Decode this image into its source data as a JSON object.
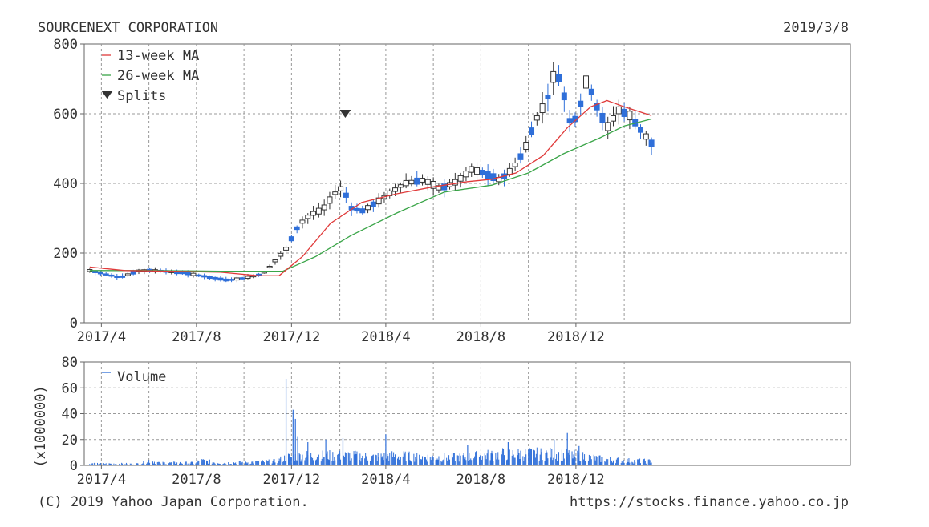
{
  "header": {
    "company": "SOURCENEXT CORPORATION",
    "date": "2019/3/8"
  },
  "footer": {
    "copyright": "(C) 2019 Yahoo Japan Corporation.",
    "url": "https://stocks.finance.yahoo.co.jp"
  },
  "colors": {
    "up_candle_fill": "#ffffff",
    "up_candle_stroke": "#333333",
    "down_candle_fill": "#2f6fd9",
    "ma13": "#e03a3a",
    "ma26": "#3aa548",
    "split_marker": "#333333",
    "volume": "#2f6fd9",
    "grid": "#999999"
  },
  "chart_data": [
    {
      "type": "candlestick",
      "title": "",
      "xlabel": "",
      "ylabel": "",
      "ylim": [
        0,
        800
      ],
      "yticks": [
        0,
        200,
        400,
        600,
        800
      ],
      "xtick_labels": [
        "2017/4",
        "2017/8",
        "2017/12",
        "2018/4",
        "2018/8",
        "2018/12"
      ],
      "grid": true,
      "legend_position": "top-left",
      "legend": [
        {
          "label": "13-week MA",
          "icon": "line",
          "color": "#e03a3a"
        },
        {
          "label": "26-week MA",
          "icon": "line",
          "color": "#3aa548"
        },
        {
          "label": "Splits",
          "icon": "down-triangle",
          "color": "#333333"
        }
      ],
      "split_marker_value": 600,
      "price_path": [
        [
          "2017-03-17",
          150
        ],
        [
          "2017-04-05",
          140
        ],
        [
          "2017-04-25",
          130
        ],
        [
          "2017-05-20",
          150
        ],
        [
          "2017-06-10",
          150
        ],
        [
          "2017-07-05",
          145
        ],
        [
          "2017-07-25",
          140
        ],
        [
          "2017-08-20",
          130
        ],
        [
          "2017-09-10",
          122
        ],
        [
          "2017-10-05",
          130
        ],
        [
          "2017-10-25",
          140
        ],
        [
          "2017-11-05",
          165
        ],
        [
          "2017-11-25",
          215
        ],
        [
          "2017-12-10",
          280
        ],
        [
          "2017-12-25",
          310
        ],
        [
          "2018-01-10",
          325
        ],
        [
          "2018-01-25",
          370
        ],
        [
          "2018-02-05",
          390
        ],
        [
          "2018-02-15",
          330
        ],
        [
          "2018-03-01",
          320
        ],
        [
          "2018-03-20",
          345
        ],
        [
          "2018-04-05",
          370
        ],
        [
          "2018-04-25",
          400
        ],
        [
          "2018-05-20",
          410
        ],
        [
          "2018-06-10",
          385
        ],
        [
          "2018-07-01",
          405
        ],
        [
          "2018-07-20",
          440
        ],
        [
          "2018-08-05",
          430
        ],
        [
          "2018-08-25",
          410
        ],
        [
          "2018-09-10",
          440
        ],
        [
          "2018-09-25",
          490
        ],
        [
          "2018-10-10",
          580
        ],
        [
          "2018-10-25",
          640
        ],
        [
          "2018-11-05",
          730
        ],
        [
          "2018-11-15",
          660
        ],
        [
          "2018-11-25",
          560
        ],
        [
          "2018-12-05",
          610
        ],
        [
          "2018-12-15",
          700
        ],
        [
          "2018-12-28",
          620
        ],
        [
          "2019-01-10",
          560
        ],
        [
          "2019-01-25",
          610
        ],
        [
          "2019-02-08",
          595
        ],
        [
          "2019-02-20",
          560
        ],
        [
          "2019-03-08",
          515
        ]
      ],
      "ma13_path": [
        [
          "2017-03-17",
          160
        ],
        [
          "2017-05-01",
          150
        ],
        [
          "2017-07-01",
          148
        ],
        [
          "2017-09-01",
          145
        ],
        [
          "2017-10-20",
          135
        ],
        [
          "2017-11-15",
          135
        ],
        [
          "2017-12-15",
          190
        ],
        [
          "2018-01-20",
          285
        ],
        [
          "2018-03-01",
          345
        ],
        [
          "2018-04-15",
          370
        ],
        [
          "2018-06-01",
          390
        ],
        [
          "2018-07-15",
          405
        ],
        [
          "2018-08-15",
          412
        ],
        [
          "2018-09-15",
          430
        ],
        [
          "2018-10-20",
          480
        ],
        [
          "2018-11-20",
          560
        ],
        [
          "2018-12-20",
          620
        ],
        [
          "2019-01-10",
          638
        ],
        [
          "2019-02-01",
          620
        ],
        [
          "2019-03-08",
          595
        ]
      ],
      "ma26_path": [
        [
          "2017-03-17",
          150
        ],
        [
          "2017-06-01",
          150
        ],
        [
          "2017-09-01",
          148
        ],
        [
          "2017-11-20",
          148
        ],
        [
          "2018-01-01",
          190
        ],
        [
          "2018-02-15",
          250
        ],
        [
          "2018-04-15",
          315
        ],
        [
          "2018-06-15",
          375
        ],
        [
          "2018-08-15",
          395
        ],
        [
          "2018-10-01",
          430
        ],
        [
          "2018-11-15",
          485
        ],
        [
          "2018-12-31",
          530
        ],
        [
          "2019-02-01",
          565
        ],
        [
          "2019-03-08",
          585
        ]
      ]
    },
    {
      "type": "bar",
      "title": "",
      "xlabel": "",
      "ylabel": "(x1000000)",
      "ylim": [
        0,
        80
      ],
      "yticks": [
        0,
        20,
        40,
        60,
        80
      ],
      "xtick_labels": [
        "2017/4",
        "2017/8",
        "2017/12",
        "2018/4",
        "2018/8",
        "2018/12"
      ],
      "grid": true,
      "legend_position": "top-left",
      "legend": [
        {
          "label": "Volume",
          "icon": "line",
          "color": "#2f6fd9"
        }
      ],
      "volume_envelope": [
        [
          "2017-03-17",
          2
        ],
        [
          "2017-05-20",
          2
        ],
        [
          "2017-06-01",
          6
        ],
        [
          "2017-06-15",
          3
        ],
        [
          "2017-08-01",
          3
        ],
        [
          "2017-08-05",
          6
        ],
        [
          "2017-09-01",
          3
        ],
        [
          "2017-10-15",
          4
        ],
        [
          "2017-11-10",
          5
        ],
        [
          "2017-11-25",
          10
        ],
        [
          "2017-12-20",
          12
        ],
        [
          "2018-01-20",
          12
        ],
        [
          "2018-02-15",
          12
        ],
        [
          "2018-03-15",
          10
        ],
        [
          "2018-04-15",
          12
        ],
        [
          "2018-05-15",
          10
        ],
        [
          "2018-06-15",
          10
        ],
        [
          "2018-07-15",
          10
        ],
        [
          "2018-08-01",
          12
        ],
        [
          "2018-09-01",
          14
        ],
        [
          "2018-10-01",
          14
        ],
        [
          "2018-11-01",
          14
        ],
        [
          "2018-12-01",
          12
        ],
        [
          "2019-01-01",
          8
        ],
        [
          "2019-02-01",
          6
        ],
        [
          "2019-03-08",
          5
        ]
      ],
      "volume_spikes": [
        [
          "2017-11-24",
          67
        ],
        [
          "2017-12-03",
          43
        ],
        [
          "2017-12-06",
          36
        ],
        [
          "2017-12-09",
          22
        ],
        [
          "2017-12-22",
          18
        ],
        [
          "2018-01-14",
          20
        ],
        [
          "2018-02-05",
          21
        ],
        [
          "2018-04-01",
          24
        ],
        [
          "2018-07-15",
          16
        ],
        [
          "2018-09-05",
          18
        ],
        [
          "2018-11-03",
          20
        ],
        [
          "2018-11-20",
          25
        ],
        [
          "2018-12-05",
          15
        ]
      ]
    }
  ]
}
